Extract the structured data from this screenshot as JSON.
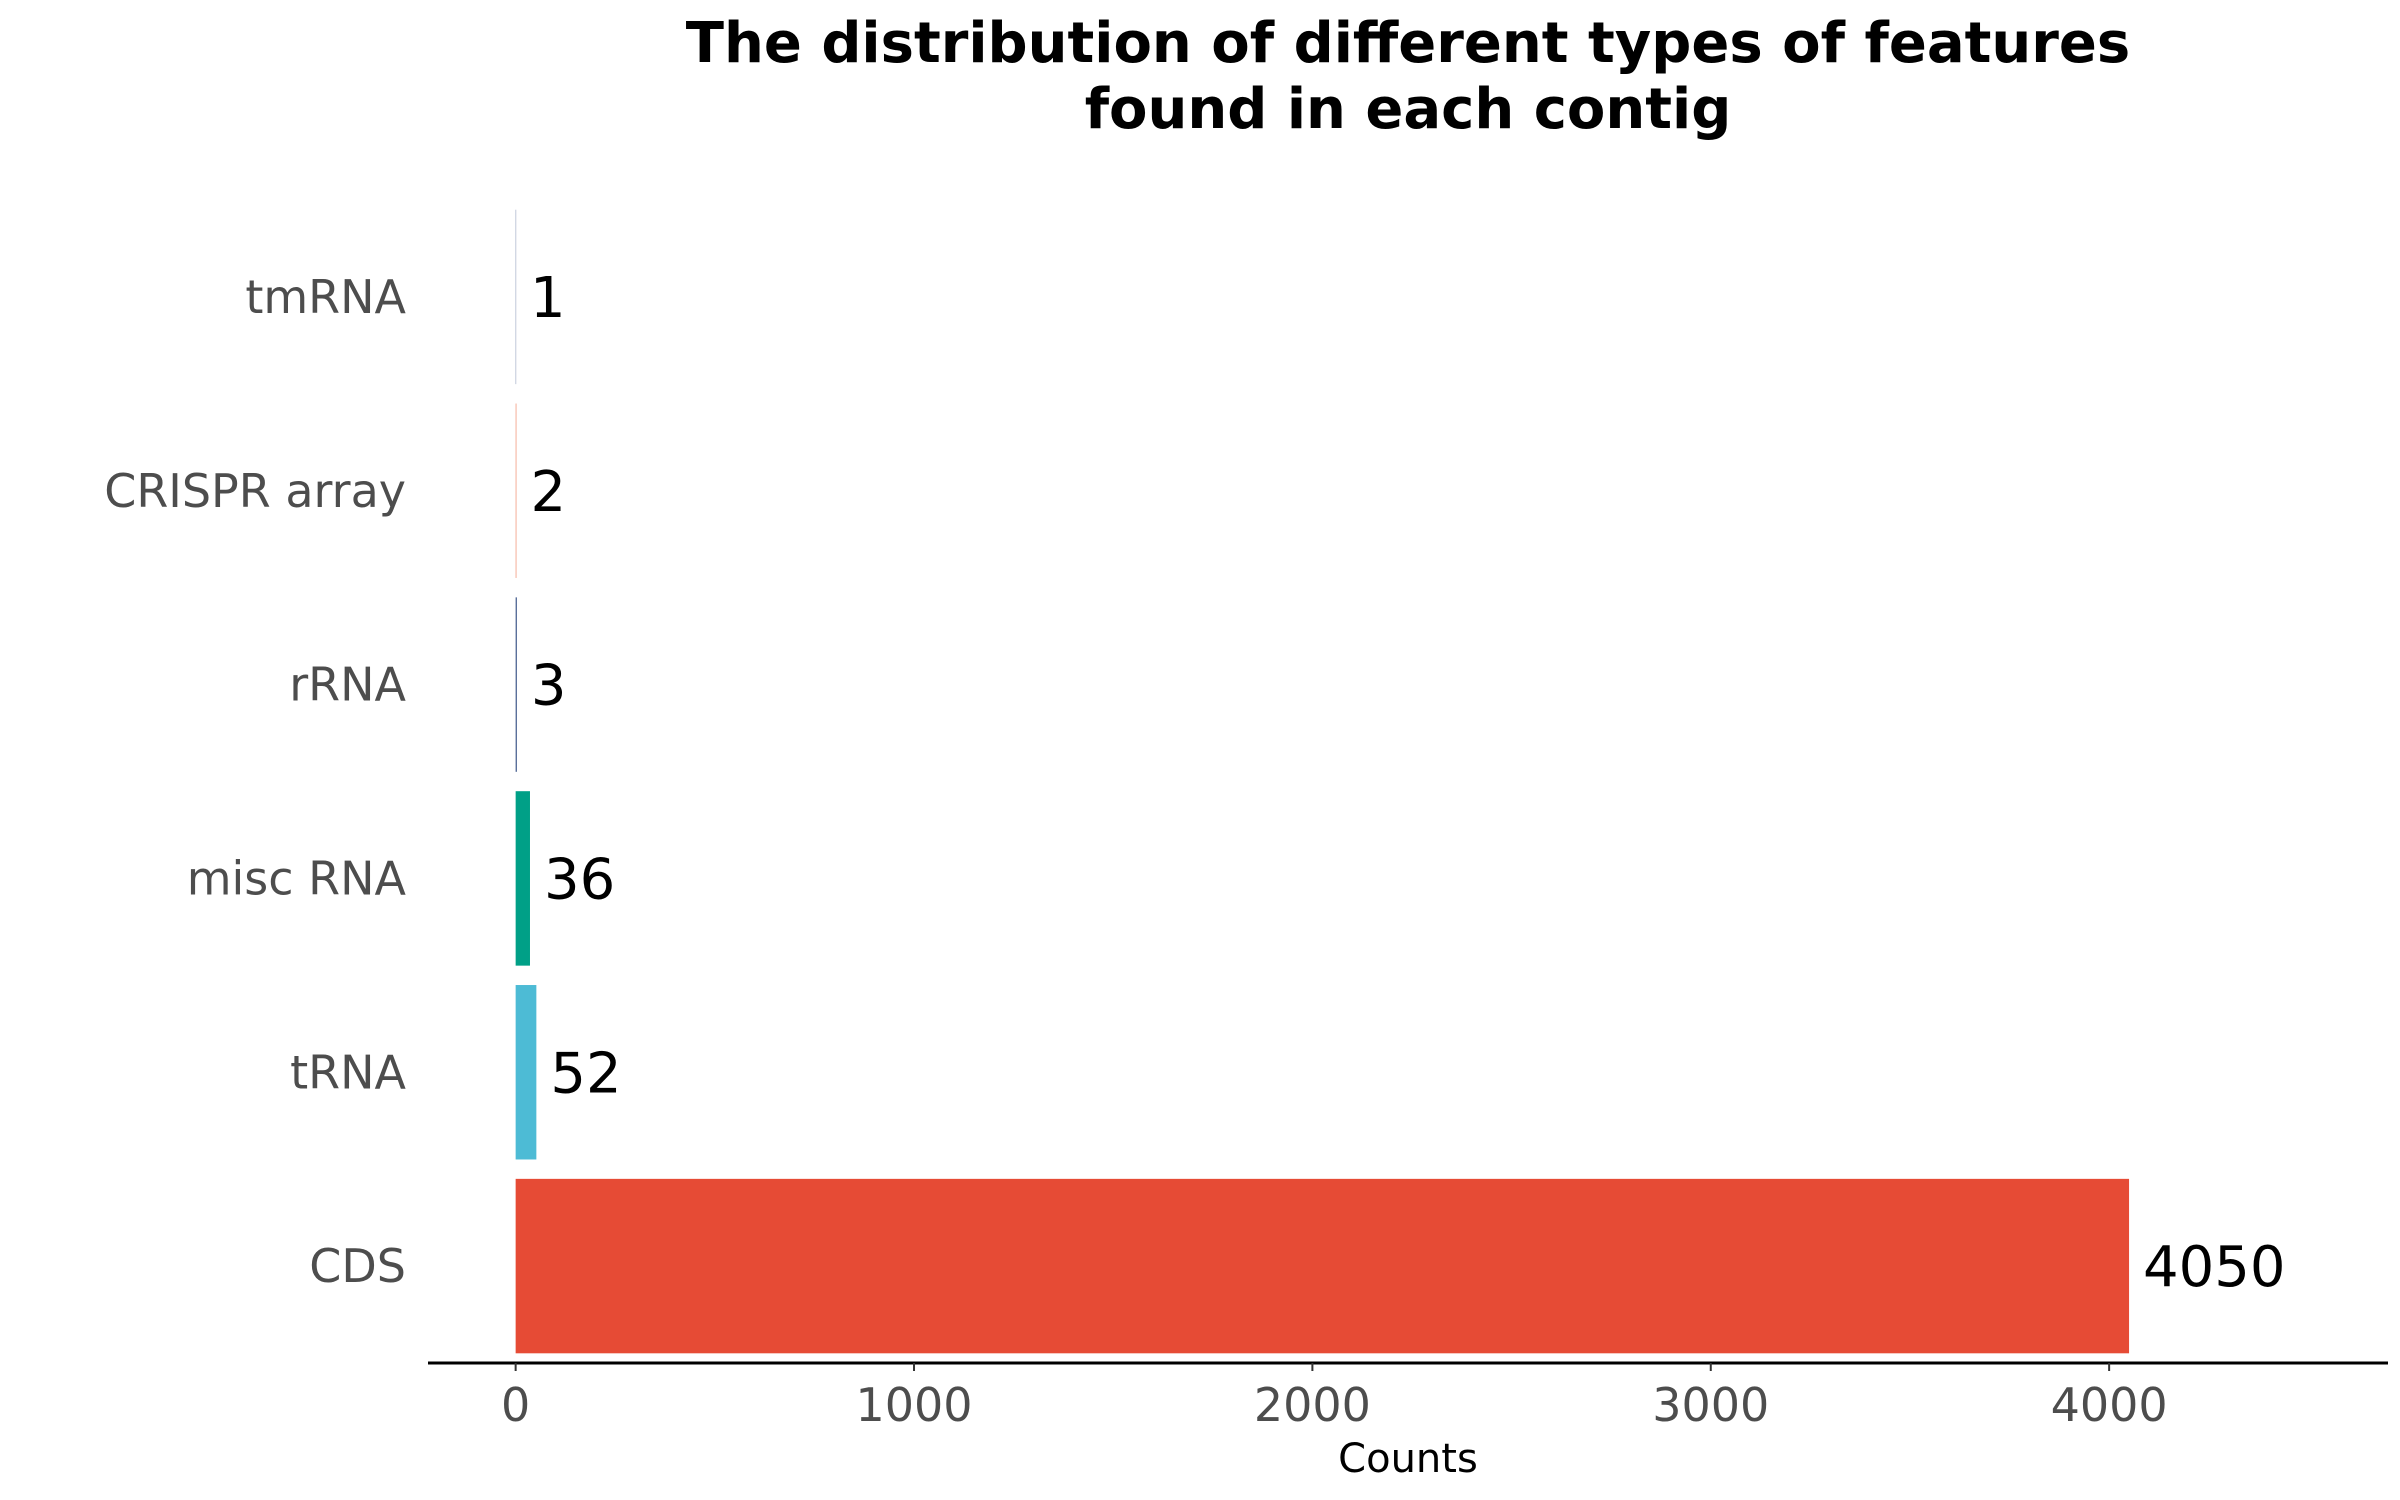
{
  "chart_data": {
    "type": "bar",
    "orientation": "horizontal",
    "title": "The distribution of different types of features found in each contig",
    "title_lines": [
      "The distribution of different types of features",
      "found in each contig"
    ],
    "xlabel": "Counts",
    "ylabel": "",
    "categories": [
      "CDS",
      "tRNA",
      "misc RNA",
      "rRNA",
      "CRISPR array",
      "tmRNA"
    ],
    "values": [
      4050,
      52,
      36,
      3,
      2,
      1
    ],
    "value_labels": [
      "4050",
      "52",
      "36",
      "3",
      "2",
      "1"
    ],
    "colors": [
      "#e64b35",
      "#4dbbd5",
      "#00a087",
      "#3c5488",
      "#f39b7f",
      "#8491b4"
    ],
    "xlim": [
      -220,
      4700
    ],
    "xticks": [
      0,
      1000,
      2000,
      3000,
      4000
    ],
    "xtick_labels": [
      "0",
      "1000",
      "2000",
      "3000",
      "4000"
    ],
    "grid": false,
    "legend": "none"
  }
}
